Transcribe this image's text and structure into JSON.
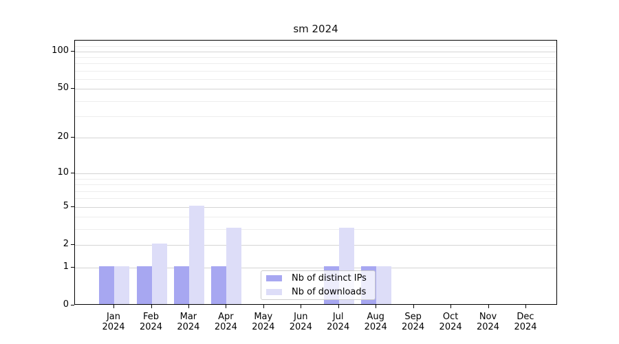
{
  "chart_data": {
    "type": "bar",
    "title": "sm 2024",
    "categories": [
      "Jan",
      "Feb",
      "Mar",
      "Apr",
      "May",
      "Jun",
      "Jul",
      "Aug",
      "Sep",
      "Oct",
      "Nov",
      "Dec"
    ],
    "tick_year": "2024",
    "series": [
      {
        "name": "Nb of distinct IPs",
        "color": "#a7a7f1",
        "values": [
          1,
          1,
          1,
          1,
          0,
          0,
          1,
          1,
          0,
          0,
          0,
          0
        ]
      },
      {
        "name": "Nb of downloads",
        "color": "#ddddf8",
        "values": [
          1,
          2,
          5,
          3,
          0,
          0,
          3,
          1,
          0,
          0,
          0,
          0
        ]
      }
    ],
    "y_axis": {
      "scale": "log1p",
      "tick_values": [
        0,
        1,
        2,
        5,
        10,
        20,
        50,
        100
      ],
      "tick_labels": [
        "0",
        "1",
        "2",
        "5",
        "10",
        "20",
        "50",
        "100"
      ],
      "minor_gridline_values": [
        3,
        4,
        6,
        7,
        8,
        9,
        30,
        40,
        60,
        70,
        80,
        90,
        110,
        120
      ],
      "ylim": [
        0,
        122
      ]
    },
    "grid": true,
    "legend_position": "lower-center",
    "colors": {
      "axis": "#000000",
      "grid_major": "#d4d4d4",
      "grid_minor": "#ededed",
      "background": "#ffffff"
    }
  }
}
